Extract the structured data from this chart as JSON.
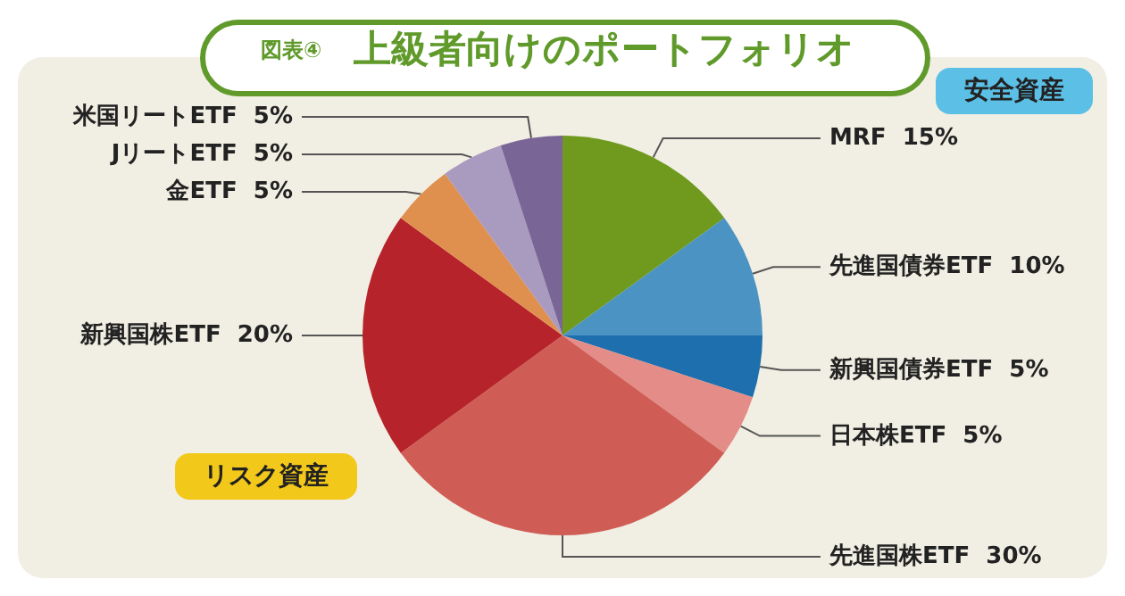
{
  "chart_data": {
    "type": "pie",
    "title": "上級者向けのポートフォリオ",
    "subtitle": "図表④",
    "categories": [
      "MRF",
      "先進国債券ETF",
      "新興国債券ETF",
      "日本株ETF",
      "先進国株ETF",
      "新興国株ETF",
      "金ETF",
      "JリートETF",
      "米国リートETF"
    ],
    "values": [
      15,
      10,
      5,
      5,
      30,
      20,
      5,
      5,
      5
    ],
    "colors": [
      "#6f9a1e",
      "#4a93c2",
      "#1d6fae",
      "#e38c88",
      "#d05d55",
      "#b7232b",
      "#e0904e",
      "#a99abf",
      "#7a6597"
    ],
    "annotations": [
      "安全資産",
      "リスク資産"
    ],
    "value_labels": [
      "15%",
      "10%",
      "5%",
      "5%",
      "30%",
      "20%",
      "5%",
      "5%",
      "5%"
    ],
    "legend": false
  }
}
